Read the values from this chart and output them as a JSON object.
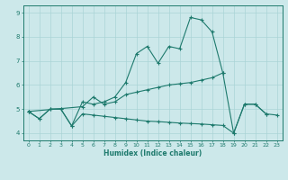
{
  "color": "#1e7a6d",
  "bg_color": "#cce8ea",
  "grid_color": "#aad4d6",
  "xlabel": "Humidex (Indice chaleur)",
  "xlim": [
    -0.5,
    23.5
  ],
  "ylim": [
    3.7,
    9.3
  ],
  "yticks": [
    4,
    5,
    6,
    7,
    8,
    9
  ],
  "xticks": [
    0,
    1,
    2,
    3,
    4,
    5,
    6,
    7,
    8,
    9,
    10,
    11,
    12,
    13,
    14,
    15,
    16,
    17,
    18,
    19,
    20,
    21,
    22,
    23
  ],
  "line1_x": [
    0,
    1,
    2,
    3,
    4,
    5,
    6,
    7,
    8,
    9,
    10,
    11,
    12,
    13,
    14,
    15,
    16,
    17,
    18,
    19,
    20,
    21,
    22
  ],
  "line1_y": [
    4.9,
    4.6,
    5.0,
    5.0,
    4.3,
    5.3,
    5.2,
    5.3,
    5.5,
    6.1,
    7.3,
    7.6,
    6.9,
    7.6,
    7.5,
    8.8,
    8.7,
    8.2,
    6.5,
    4.0,
    5.2,
    5.2,
    4.8
  ],
  "line2_x": [
    0,
    5,
    6,
    7,
    8,
    9,
    10,
    11,
    12,
    13,
    14,
    15,
    16,
    17,
    18
  ],
  "line2_y": [
    4.9,
    5.1,
    5.5,
    5.2,
    5.3,
    5.6,
    5.7,
    5.8,
    5.9,
    6.0,
    6.05,
    6.1,
    6.2,
    6.3,
    6.5
  ],
  "line3_x": [
    0,
    1,
    2,
    3,
    4,
    5,
    6,
    7,
    8,
    9,
    10,
    11,
    12,
    13,
    14,
    15,
    16,
    17,
    18,
    19,
    20,
    21,
    22,
    23
  ],
  "line3_y": [
    4.9,
    4.6,
    5.0,
    5.0,
    4.3,
    4.8,
    4.75,
    4.7,
    4.65,
    4.6,
    4.55,
    4.5,
    4.48,
    4.45,
    4.42,
    4.4,
    4.38,
    4.35,
    4.32,
    4.0,
    5.2,
    5.2,
    4.8,
    4.75
  ]
}
